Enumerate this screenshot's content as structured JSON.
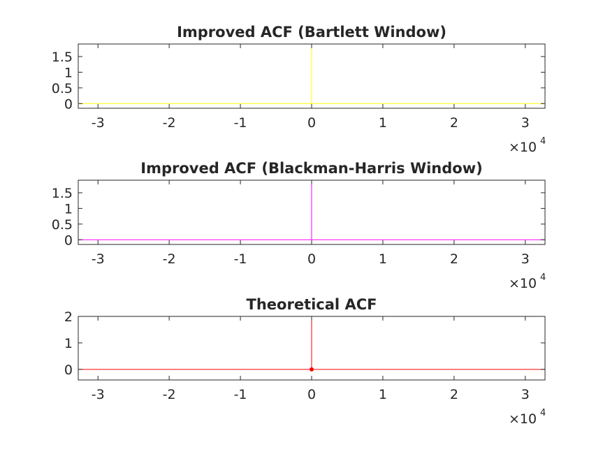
{
  "chart_data": [
    {
      "type": "line",
      "title": "Improved ACF (Bartlett Window)",
      "xlabel": "",
      "ylabel": "",
      "xlim": [
        -32767,
        32767
      ],
      "ylim": [
        -0.15,
        1.9
      ],
      "x_ticks": [
        -30000,
        -20000,
        -10000,
        0,
        10000,
        20000,
        30000
      ],
      "x_tick_labels": [
        "-3",
        "-2",
        "-1",
        "0",
        "1",
        "2",
        "3"
      ],
      "x_multiplier": {
        "base": "×10",
        "exponent": "4"
      },
      "y_ticks": [
        0,
        0.5,
        1,
        1.5
      ],
      "y_tick_labels": [
        "0",
        "0.5",
        "1",
        "1.5"
      ],
      "grid": false,
      "series": [
        {
          "color": "#ffff00",
          "x": [
            -32767,
            -1,
            0,
            1,
            32767
          ],
          "y": [
            0,
            0,
            2,
            0,
            0
          ]
        }
      ]
    },
    {
      "type": "line",
      "title": "Improved ACF (Blackman-Harris Window)",
      "xlabel": "",
      "ylabel": "",
      "xlim": [
        -32767,
        32767
      ],
      "ylim": [
        -0.15,
        1.9
      ],
      "x_ticks": [
        -30000,
        -20000,
        -10000,
        0,
        10000,
        20000,
        30000
      ],
      "x_tick_labels": [
        "-3",
        "-2",
        "-1",
        "0",
        "1",
        "2",
        "3"
      ],
      "x_multiplier": {
        "base": "×10",
        "exponent": "4"
      },
      "y_ticks": [
        0,
        0.5,
        1,
        1.5
      ],
      "y_tick_labels": [
        "0",
        "0.5",
        "1",
        "1.5"
      ],
      "grid": false,
      "series": [
        {
          "color": "#ff00ff",
          "x": [
            -32767,
            -1,
            0,
            1,
            32767
          ],
          "y": [
            0,
            0,
            2,
            0,
            0
          ]
        }
      ]
    },
    {
      "type": "line",
      "title": "Theoretical ACF",
      "xlabel": "",
      "ylabel": "",
      "xlim": [
        -32767,
        32767
      ],
      "ylim": [
        -0.4,
        2
      ],
      "x_ticks": [
        -30000,
        -20000,
        -10000,
        0,
        10000,
        20000,
        30000
      ],
      "x_tick_labels": [
        "-3",
        "-2",
        "-1",
        "0",
        "1",
        "2",
        "3"
      ],
      "x_multiplier": {
        "base": "×10",
        "exponent": "4"
      },
      "y_ticks": [
        0,
        1,
        2
      ],
      "y_tick_labels": [
        "0",
        "1",
        "2"
      ],
      "grid": false,
      "series": [
        {
          "color": "#ff0000",
          "x": [
            -32767,
            -1,
            0,
            1,
            32767
          ],
          "y": [
            0,
            0,
            2,
            0,
            0
          ],
          "marker_at": [
            0,
            0
          ]
        }
      ]
    }
  ]
}
